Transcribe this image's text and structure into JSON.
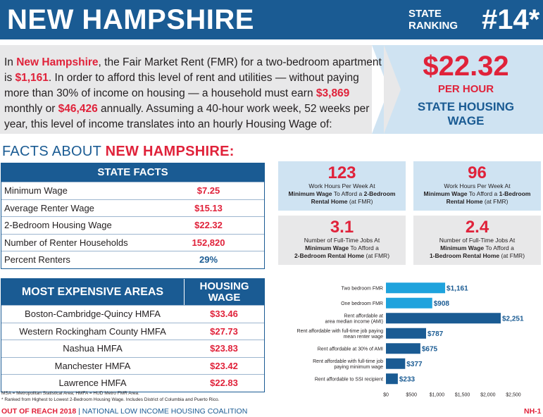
{
  "header": {
    "state_name": "NEW HAMPSHIRE",
    "rank_label_1": "STATE",
    "rank_label_2": "RANKING",
    "rank_value": "#14*"
  },
  "intro": {
    "t1": "In ",
    "state": "New Hampshire",
    "t2": ", the Fair Market Rent (FMR) for a two-bedroom apartment is ",
    "fmr": "$1,161",
    "t3": ". In order to afford this level of rent and utilities — without paying more than 30% of income on housing — a household must earn ",
    "monthly": "$3,869",
    "t4": " monthly or ",
    "annual": "$46,426",
    "t5": " annually. Assuming a 40-hour work week, 52 weeks per year, this level of income translates into an hourly Housing Wage of:"
  },
  "housing_wage": {
    "value": "$22.32",
    "unit": "PER HOUR",
    "label_1": "STATE HOUSING",
    "label_2": "WAGE"
  },
  "facts_heading": {
    "prefix": "FACTS ABOUT ",
    "state": "NEW HAMPSHIRE:"
  },
  "state_facts": {
    "title": "STATE FACTS",
    "rows": [
      {
        "label": "Minimum Wage",
        "value": "$7.25"
      },
      {
        "label": "Average Renter Wage",
        "value": "$15.13"
      },
      {
        "label": "2-Bedroom Housing Wage",
        "value": "$22.32"
      },
      {
        "label": "Number of Renter Households",
        "value": "152,820"
      },
      {
        "label": "Percent Renters",
        "value": "29%"
      }
    ]
  },
  "expensive_areas": {
    "title": "MOST EXPENSIVE AREAS",
    "wage_header_1": "HOUSING",
    "wage_header_2": "WAGE",
    "rows": [
      {
        "label": "Boston-Cambridge-Quincy HMFA",
        "value": "$33.46"
      },
      {
        "label": "Western Rockingham County HMFA",
        "value": "$27.73"
      },
      {
        "label": "Nashua HMFA",
        "value": "$23.83"
      },
      {
        "label": "Manchester HMFA",
        "value": "$23.42"
      },
      {
        "label": "Lawrence HMFA",
        "value": "$22.83"
      }
    ]
  },
  "footnotes": {
    "line1": "MSA = Metropolitan Statistical Area; HMFA = HUD Metro FMR Area.",
    "line2": "* Ranked from Highest to Lowest 2-Bedroom Housing Wage. Includes District of Columbia and Puerto Rico."
  },
  "footer": {
    "left_bold": "OUT OF REACH 2018",
    "left_rest": " | NATIONAL LOW INCOME HOUSING COALITION",
    "page": "NH-1"
  },
  "stats": [
    {
      "num": "123",
      "line1": "Work Hours Per Week At",
      "bold1": "Minimum Wage",
      "mid1": " To Afford a ",
      "bold2": "2-Bedroom",
      "line3b": "Rental Home",
      "line3": " (at FMR)"
    },
    {
      "num": "96",
      "line1": "Work Hours Per Week At",
      "bold1": "Minimum Wage",
      "mid1": " To Afford a ",
      "bold2": "1-Bedroom",
      "line3b": "Rental Home",
      "line3": " (at FMR)"
    },
    {
      "num": "3.1",
      "line1": "Number of Full-Time Jobs At",
      "bold1": "Minimum Wage",
      "mid1": " To Afford a",
      "bold2": "",
      "line3b": "2-Bedroom Rental Home",
      "line3": " (at FMR)"
    },
    {
      "num": "2.4",
      "line1": "Number of Full-Time Jobs At",
      "bold1": "Minimum Wage",
      "mid1": " To Afford a",
      "bold2": "",
      "line3b": "1-Bedroom Rental Home",
      "line3": " (at FMR)"
    }
  ],
  "colors": {
    "navy": "#1a5b93",
    "red": "#e0223a",
    "light_blue_bar": "#1fa3dd",
    "dark_blue_bar": "#1a5b93"
  },
  "chart_data": {
    "type": "bar",
    "orientation": "horizontal",
    "categories": [
      [
        "Two bedroom FMR"
      ],
      [
        "One bedroom FMR"
      ],
      [
        "Rent affordable at",
        "area median income (AMI)"
      ],
      [
        "Rent affordable with full-time job paying",
        "mean renter wage"
      ],
      [
        "Rent affordable at 30% of AMI"
      ],
      [
        "Rent affordable with full-time job",
        "paying minimum wage"
      ],
      [
        "Rent affordable to SSI recipient"
      ]
    ],
    "values": [
      1161,
      908,
      2251,
      787,
      675,
      377,
      233
    ],
    "value_labels": [
      "$1,161",
      "$908",
      "$2,251",
      "$787",
      "$675",
      "$377",
      "$233"
    ],
    "bar_colors": [
      "#1fa3dd",
      "#1fa3dd",
      "#1a5b93",
      "#1a5b93",
      "#1a5b93",
      "#1a5b93",
      "#1a5b93"
    ],
    "xlim": [
      0,
      2500
    ],
    "xticks": [
      0,
      500,
      1000,
      1500,
      2000,
      2500
    ],
    "xtick_labels": [
      "$0",
      "$500",
      "$1,000",
      "$1,500",
      "$2,000",
      "$2,500"
    ],
    "grid": false
  }
}
